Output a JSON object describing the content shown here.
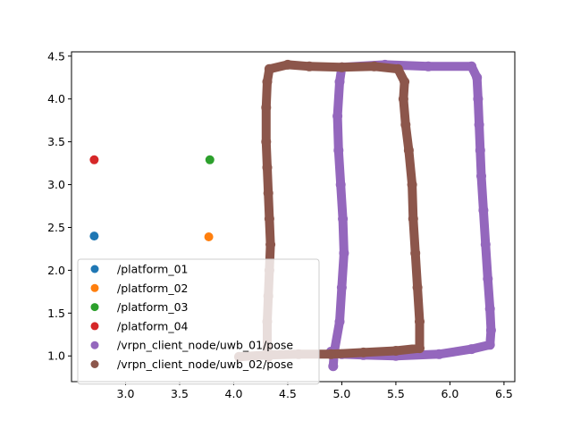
{
  "chart_data": {
    "type": "scatter",
    "xlim": [
      2.5,
      6.6
    ],
    "ylim": [
      0.7,
      4.55
    ],
    "x_ticks": [
      3.0,
      3.5,
      4.0,
      4.5,
      5.0,
      5.5,
      6.0,
      6.5
    ],
    "x_tick_labels": [
      "3.0",
      "3.5",
      "4.0",
      "4.5",
      "5.0",
      "5.5",
      "6.0",
      "6.5"
    ],
    "y_ticks": [
      1.0,
      1.5,
      2.0,
      2.5,
      3.0,
      3.5,
      4.0,
      4.5
    ],
    "y_tick_labels": [
      "1.0",
      "1.5",
      "2.0",
      "2.5",
      "3.0",
      "3.5",
      "4.0",
      "4.5"
    ],
    "grid": false,
    "legend_position": "lower-left",
    "series": [
      {
        "name": "/platform_01",
        "color": "#1f77b4",
        "points": [
          [
            2.71,
            2.4
          ]
        ]
      },
      {
        "name": "/platform_02",
        "color": "#ff7f0e",
        "points": [
          [
            3.77,
            2.39
          ]
        ]
      },
      {
        "name": "/platform_03",
        "color": "#2ca02c",
        "points": [
          [
            3.78,
            3.29
          ]
        ]
      },
      {
        "name": "/platform_04",
        "color": "#d62728",
        "points": [
          [
            2.71,
            3.29
          ]
        ]
      },
      {
        "name": "/vrpn_client_node/uwb_01/pose",
        "color": "#9467bd",
        "trajectory": true,
        "points": [
          [
            4.92,
            0.88
          ],
          [
            4.93,
            1.05
          ],
          [
            4.98,
            1.4
          ],
          [
            5.0,
            1.8
          ],
          [
            5.02,
            2.2
          ],
          [
            5.01,
            2.6
          ],
          [
            4.99,
            3.0
          ],
          [
            4.97,
            3.4
          ],
          [
            4.96,
            3.8
          ],
          [
            4.98,
            4.2
          ],
          [
            5.0,
            4.37
          ],
          [
            5.4,
            4.4
          ],
          [
            5.8,
            4.38
          ],
          [
            6.2,
            4.38
          ],
          [
            6.25,
            4.25
          ],
          [
            6.26,
            4.0
          ],
          [
            6.27,
            3.7
          ],
          [
            6.28,
            3.4
          ],
          [
            6.29,
            3.1
          ],
          [
            6.31,
            2.7
          ],
          [
            6.33,
            2.3
          ],
          [
            6.35,
            1.9
          ],
          [
            6.37,
            1.55
          ],
          [
            6.38,
            1.3
          ],
          [
            6.37,
            1.13
          ],
          [
            6.2,
            1.08
          ],
          [
            5.9,
            1.02
          ],
          [
            5.5,
            1.0
          ],
          [
            5.2,
            1.01
          ],
          [
            5.0,
            1.02
          ],
          [
            4.9,
            1.05
          ]
        ]
      },
      {
        "name": "/vrpn_client_node/uwb_02/pose",
        "color": "#8c564b",
        "trajectory": true,
        "points": [
          [
            4.05,
            0.99
          ],
          [
            4.3,
            1.01
          ],
          [
            4.6,
            1.02
          ],
          [
            4.9,
            1.02
          ],
          [
            5.2,
            1.04
          ],
          [
            5.5,
            1.06
          ],
          [
            5.72,
            1.09
          ],
          [
            5.72,
            1.4
          ],
          [
            5.7,
            1.8
          ],
          [
            5.68,
            2.2
          ],
          [
            5.66,
            2.6
          ],
          [
            5.65,
            3.0
          ],
          [
            5.62,
            3.4
          ],
          [
            5.59,
            3.7
          ],
          [
            5.57,
            4.0
          ],
          [
            5.58,
            4.2
          ],
          [
            5.52,
            4.35
          ],
          [
            5.3,
            4.38
          ],
          [
            5.0,
            4.37
          ],
          [
            4.7,
            4.38
          ],
          [
            4.5,
            4.4
          ],
          [
            4.33,
            4.35
          ],
          [
            4.31,
            4.2
          ],
          [
            4.3,
            3.9
          ],
          [
            4.3,
            3.5
          ],
          [
            4.31,
            3.2
          ],
          [
            4.32,
            2.9
          ],
          [
            4.33,
            2.6
          ],
          [
            4.34,
            2.3
          ],
          [
            4.33,
            2.0
          ],
          [
            4.32,
            1.7
          ],
          [
            4.31,
            1.4
          ],
          [
            4.31,
            1.1
          ],
          [
            4.32,
            0.99
          ]
        ]
      }
    ]
  }
}
